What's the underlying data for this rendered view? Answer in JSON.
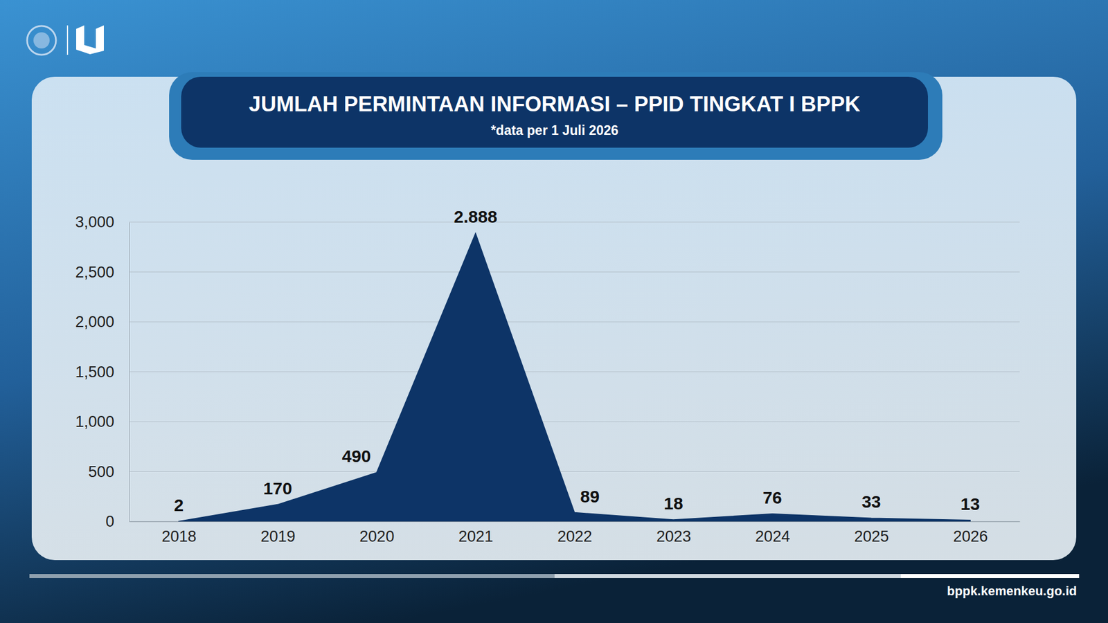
{
  "chart_data": {
    "type": "area",
    "title": "JUMLAH PERMINTAAN INFORMASI – PPID TINGKAT I BPPK",
    "subtitle": "*data per 1 Juli 2026",
    "categories": [
      "2018",
      "2019",
      "2020",
      "2021",
      "2022",
      "2023",
      "2024",
      "2025",
      "2026"
    ],
    "values": [
      2,
      170,
      490,
      2888,
      89,
      18,
      76,
      33,
      13
    ],
    "value_labels": [
      "2",
      "170",
      "490",
      "2.888",
      "89",
      "18",
      "76",
      "33",
      "13"
    ],
    "color": "#0d3467",
    "ylim": [
      0,
      3000
    ],
    "yticks": [
      0,
      500,
      {
        "value": 1000,
        "label": "1,000"
      },
      {
        "value": 1500,
        "label": "1,500"
      },
      {
        "value": 2000,
        "label": "2,000"
      },
      {
        "value": 2500,
        "label": "2,500"
      },
      {
        "value": 3000,
        "label": "3,000"
      }
    ],
    "grid": true,
    "data_labels": true
  },
  "footer": "bppk.kemenkeu.go.id"
}
